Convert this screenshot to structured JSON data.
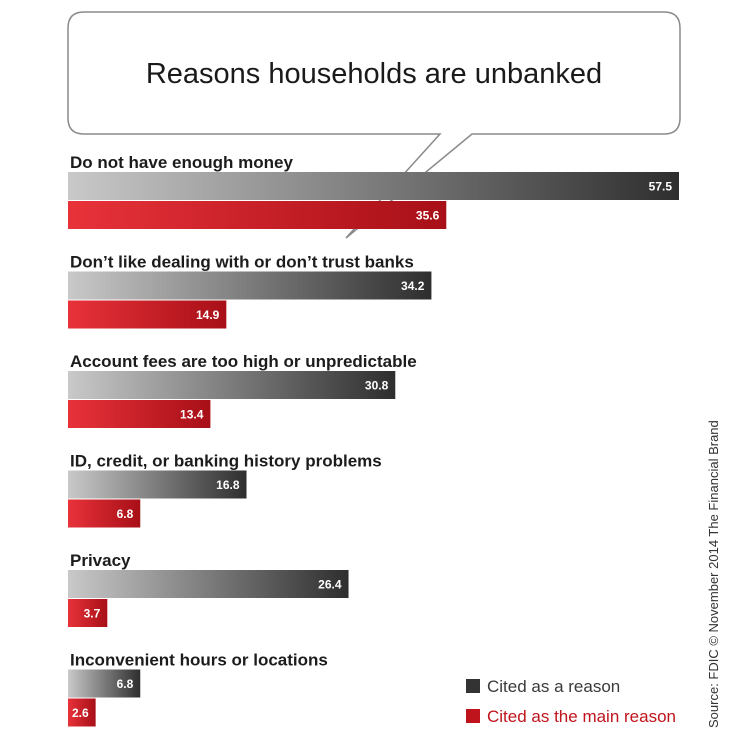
{
  "chart_data": {
    "type": "bar",
    "orientation": "horizontal",
    "title": "Reasons households are unbanked",
    "categories": [
      "Do not have enough money",
      "Don’t like dealing with or don’t trust banks",
      "Account fees are too high or unpredictable",
      "ID, credit, or banking history problems",
      "Privacy",
      "Inconvenient hours or locations"
    ],
    "series": [
      {
        "name": "Cited as a reason",
        "values": [
          57.5,
          34.2,
          30.8,
          16.8,
          26.4,
          6.8
        ],
        "color": "#333333"
      },
      {
        "name": "Cited as the main reason",
        "values": [
          35.6,
          14.9,
          13.4,
          6.8,
          3.7,
          2.6
        ],
        "color": "#c0141c"
      }
    ],
    "xlim": [
      0,
      57.5
    ],
    "grid": false,
    "legend_position": "bottom-right",
    "source": "Source: FDIC © November 2014 The Financial Brand"
  }
}
